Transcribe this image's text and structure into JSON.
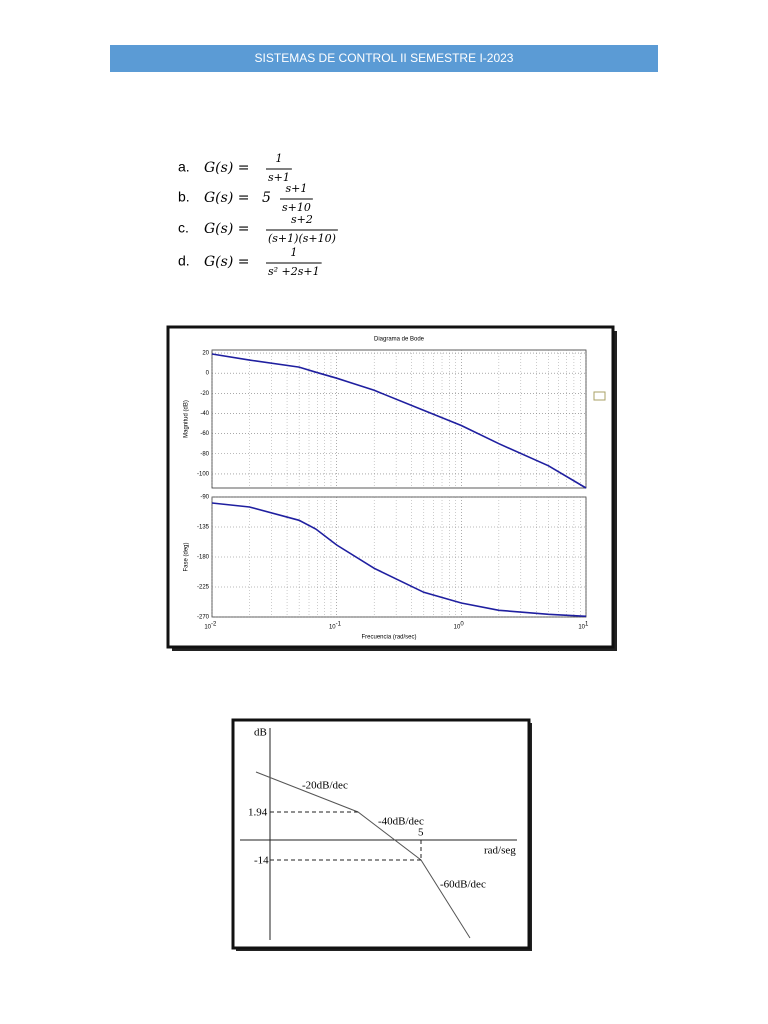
{
  "header": {
    "title": "SISTEMAS DE CONTROL II SEMESTRE I-2023"
  },
  "equations": [
    {
      "label": "a.",
      "lhs": "G(s) =",
      "num": "1",
      "den": "s+1"
    },
    {
      "label": "b.",
      "lhs": "G(s) =",
      "coef": "5",
      "num": "s+1",
      "den": "s+10"
    },
    {
      "label": "c.",
      "lhs": "G(s) =",
      "num": "s+2",
      "den": "(s+1)(s+10)"
    },
    {
      "label": "d.",
      "lhs": "G(s) =",
      "num": "1",
      "den": "s² +2s+1"
    }
  ],
  "bode": {
    "type": "line",
    "title": "Diagrama de Bode",
    "xlabel": "Frecuencia (rad/sec)",
    "log_x": true,
    "grid": true,
    "color": "#1f1fa0",
    "xlim": [
      0.01,
      10
    ],
    "xticks": [
      {
        "value": 0.01,
        "label": "10",
        "exponent": "-2"
      },
      {
        "value": 0.1,
        "label": "10",
        "exponent": "-1"
      },
      {
        "value": 1,
        "label": "10",
        "exponent": "0"
      },
      {
        "value": 10,
        "label": "10",
        "exponent": "1"
      }
    ],
    "x": [
      0.01,
      0.02,
      0.05,
      0.068,
      0.1,
      0.2,
      0.5,
      1,
      2,
      5,
      10
    ],
    "magnitude": {
      "ylabel": "Magnitud (dB)",
      "ylim": [
        -114,
        23
      ],
      "yticks": [
        20,
        0,
        -20,
        -40,
        -60,
        -80,
        -100
      ],
      "values": [
        19,
        13,
        6,
        1,
        -5,
        -17,
        -37,
        -52,
        -70,
        -92,
        -114
      ]
    },
    "phase": {
      "ylabel": "Fase (deg)",
      "ylim": [
        -270,
        -90
      ],
      "yticks": [
        -90,
        -135,
        -180,
        -225,
        -270
      ],
      "values": [
        -99,
        -105,
        -125,
        -138,
        -162,
        -197,
        -233,
        -249,
        -260,
        -266,
        -269
      ]
    }
  },
  "asymptotic": {
    "y_label": "dB",
    "x_label": "rad/seg",
    "slope_1": "-20dB/dec",
    "slope_2": "-40dB/dec",
    "slope_3": "-60dB/dec",
    "level_1": "1.94",
    "level_2": "-14",
    "frequency": "5"
  }
}
